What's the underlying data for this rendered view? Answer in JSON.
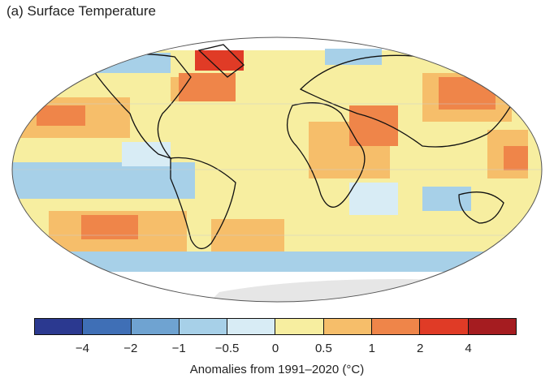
{
  "title": "(a) Surface Temperature",
  "colorbar": {
    "colors": [
      "#2b3990",
      "#3f6fb6",
      "#6fa3d1",
      "#a7d0e8",
      "#d8ecf5",
      "#f7eea0",
      "#f6be6a",
      "#ef8549",
      "#e03b26",
      "#a51c20"
    ],
    "ticks": [
      "−4",
      "−2",
      "−1",
      "−0.5",
      "0",
      "0.5",
      "1",
      "2",
      "4"
    ],
    "label": "Anomalies from 1991–2020 (°C)"
  }
}
